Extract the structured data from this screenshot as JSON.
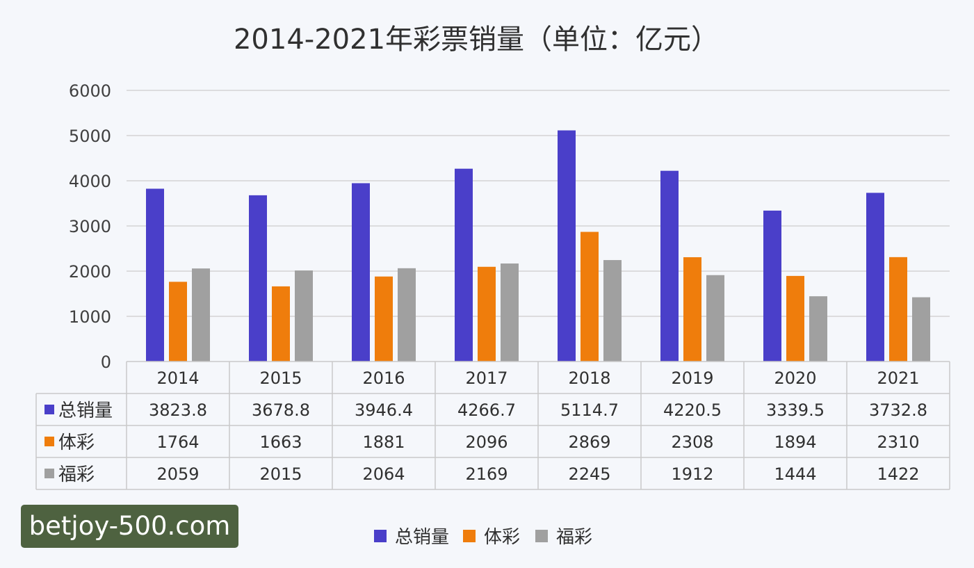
{
  "watermark": "betjoy-500.com",
  "chart_data": {
    "type": "bar",
    "title": "2014-2021年彩票销量（单位：亿元）",
    "categories": [
      "2014",
      "2015",
      "2016",
      "2017",
      "2018",
      "2019",
      "2020",
      "2021"
    ],
    "series": [
      {
        "name": "总销量",
        "color": "#4a3fc9",
        "values": [
          3823.8,
          3678.8,
          3946.4,
          4266.7,
          5114.7,
          4220.5,
          3339.5,
          3732.8
        ],
        "labels": [
          "3823.8",
          "3678.8",
          "3946.4",
          "4266.7",
          "5114.7",
          "4220.5",
          "3339.5",
          "3732.8"
        ]
      },
      {
        "name": "体彩",
        "color": "#ef7d0c",
        "values": [
          1764,
          1663,
          1881,
          2096,
          2869,
          2308,
          1894,
          2310
        ],
        "labels": [
          "1764",
          "1663",
          "1881",
          "2096",
          "2869",
          "2308",
          "1894",
          "2310"
        ]
      },
      {
        "name": "福彩",
        "color": "#a0a0a0",
        "values": [
          2059,
          2015,
          2064,
          2169,
          2245,
          1912,
          1444,
          1422
        ],
        "labels": [
          "2059",
          "2015",
          "2064",
          "2169",
          "2245",
          "1912",
          "1444",
          "1422"
        ]
      }
    ],
    "ylim": [
      0,
      6000
    ],
    "yticks": [
      "0",
      "1000",
      "2000",
      "3000",
      "4000",
      "5000",
      "6000"
    ],
    "grid": true,
    "legend": "bottom",
    "data_table": true
  }
}
